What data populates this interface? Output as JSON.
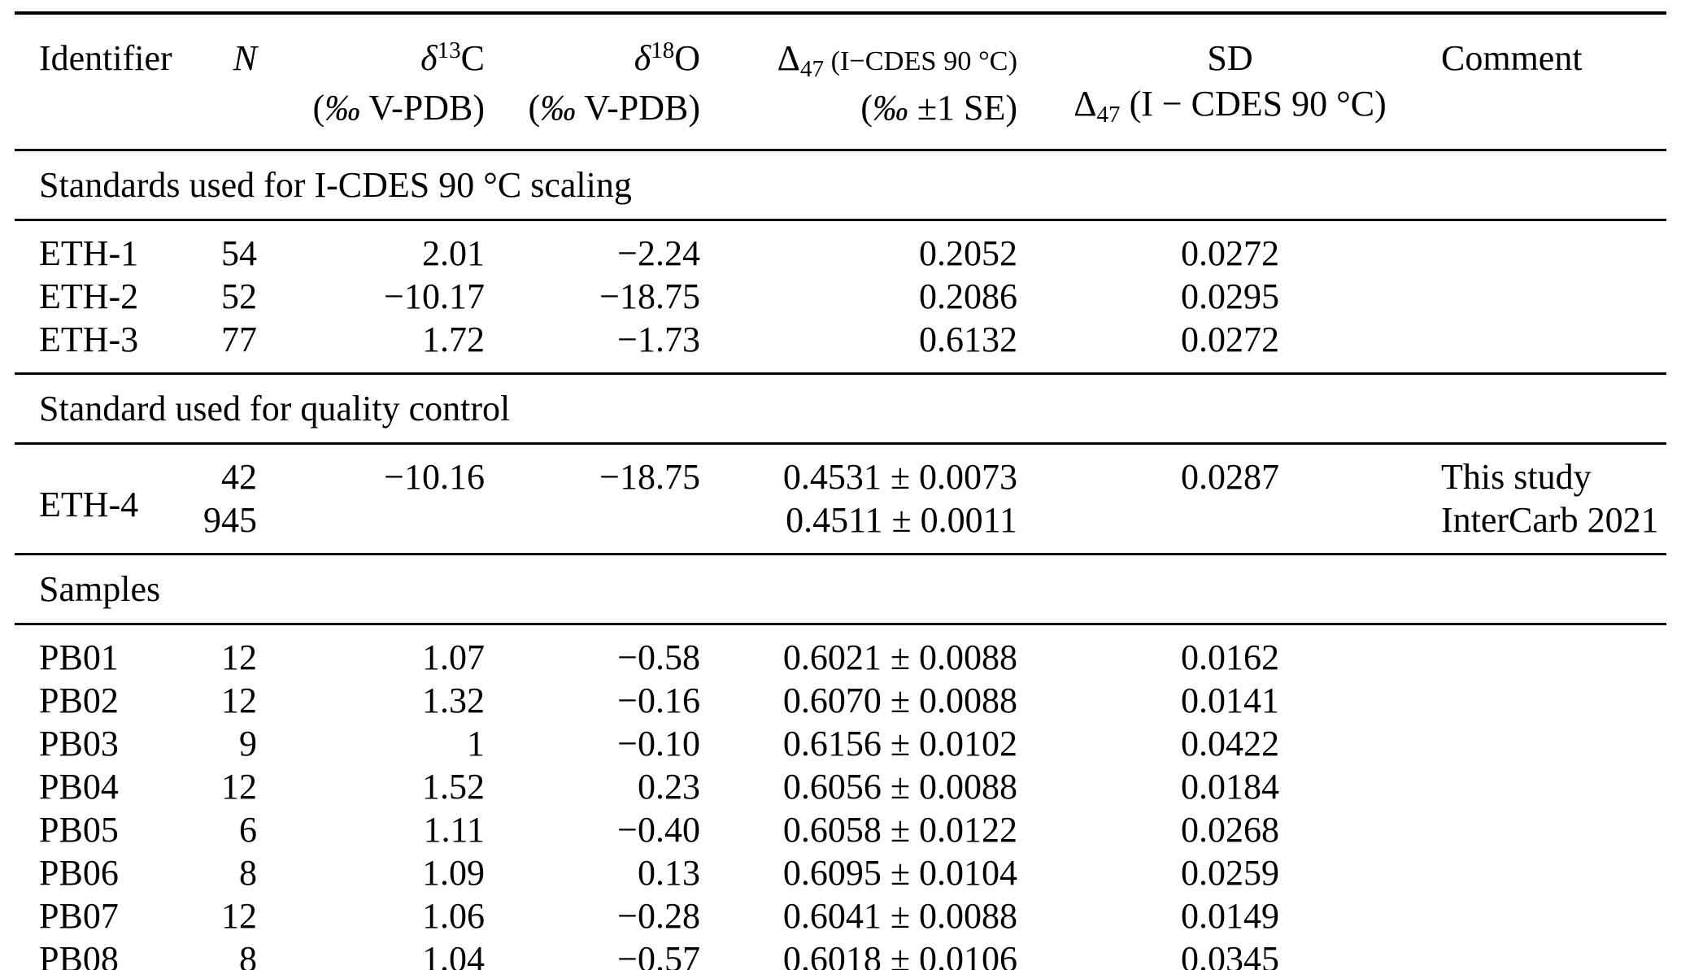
{
  "table": {
    "columns": [
      {
        "key": "identifier",
        "align": "al",
        "line1": [
          {
            "t": "text",
            "v": "Identifier"
          }
        ],
        "line2": []
      },
      {
        "key": "n",
        "align": "ar",
        "line1": [
          {
            "t": "i",
            "v": "N"
          }
        ],
        "line2": []
      },
      {
        "key": "d13c",
        "align": "ar",
        "line1": [
          {
            "t": "i",
            "v": "δ"
          },
          {
            "t": "sup",
            "v": "13"
          },
          {
            "t": "text",
            "v": "C"
          }
        ],
        "line2": [
          {
            "t": "text",
            "v": "("
          },
          {
            "t": "i",
            "v": "‰"
          },
          {
            "t": "text",
            "v": " V-PDB)"
          }
        ]
      },
      {
        "key": "d18o",
        "align": "ar",
        "line1": [
          {
            "t": "i",
            "v": "δ"
          },
          {
            "t": "sup",
            "v": "18"
          },
          {
            "t": "text",
            "v": "O"
          }
        ],
        "line2": [
          {
            "t": "text",
            "v": "("
          },
          {
            "t": "i",
            "v": "‰"
          },
          {
            "t": "text",
            "v": " V-PDB)"
          }
        ]
      },
      {
        "key": "d47",
        "align": "ar",
        "line1": [
          {
            "t": "text",
            "v": "Δ"
          },
          {
            "t": "sub",
            "v": "47"
          },
          {
            "t": "small",
            "v": " (I−CDES 90 °C)"
          }
        ],
        "line2": [
          {
            "t": "text",
            "v": "("
          },
          {
            "t": "i",
            "v": "‰"
          },
          {
            "t": "text",
            "v": " ±1 SE)"
          }
        ]
      },
      {
        "key": "sd",
        "align": "ac",
        "line1": [
          {
            "t": "text",
            "v": "SD"
          }
        ],
        "line2": [
          {
            "t": "text",
            "v": "Δ"
          },
          {
            "t": "sub",
            "v": "47"
          },
          {
            "t": "text",
            "v": " (I − CDES 90 °C)"
          }
        ]
      },
      {
        "key": "comment",
        "align": "al",
        "line1": [
          {
            "t": "text",
            "v": "Comment"
          }
        ],
        "line2": []
      }
    ],
    "sections": [
      {
        "title": "Standards used for I-CDES 90 °C scaling",
        "rows": [
          {
            "cells": {
              "identifier": "ETH-1",
              "n": "54",
              "d13c": "2.01",
              "d18o": "−2.24",
              "d47": "0.2052",
              "sd": "0.0272",
              "comment": ""
            }
          },
          {
            "cells": {
              "identifier": "ETH-2",
              "n": "52",
              "d13c": "−10.17",
              "d18o": "−18.75",
              "d47": "0.2086",
              "sd": "0.0295",
              "comment": ""
            }
          },
          {
            "cells": {
              "identifier": "ETH-3",
              "n": "77",
              "d13c": "1.72",
              "d18o": "−1.73",
              "d47": "0.6132",
              "sd": "0.0272",
              "comment": ""
            }
          }
        ]
      },
      {
        "title": "Standard used for quality control",
        "rows": [
          {
            "identifier_rowspan": 2,
            "cells": {
              "identifier": "ETH-4",
              "n": "42",
              "d13c": "−10.16",
              "d18o": "−18.75",
              "d47": "0.4531 ± 0.0073",
              "sd": "0.0287",
              "comment": "This study"
            }
          },
          {
            "cells": {
              "identifier": null,
              "n": "945",
              "d13c": "",
              "d18o": "",
              "d47": "0.4511 ± 0.0011",
              "sd": "",
              "comment": "InterCarb 2021"
            }
          }
        ]
      },
      {
        "title": "Samples",
        "rows": [
          {
            "cells": {
              "identifier": "PB01",
              "n": "12",
              "d13c": "1.07",
              "d18o": "−0.58",
              "d47": "0.6021 ± 0.0088",
              "sd": "0.0162",
              "comment": ""
            }
          },
          {
            "cells": {
              "identifier": "PB02",
              "n": "12",
              "d13c": "1.32",
              "d18o": "−0.16",
              "d47": "0.6070 ± 0.0088",
              "sd": "0.0141",
              "comment": ""
            }
          },
          {
            "cells": {
              "identifier": "PB03",
              "n": "9",
              "d13c": "1",
              "d18o": "−0.10",
              "d47": "0.6156 ± 0.0102",
              "sd": "0.0422",
              "comment": ""
            }
          },
          {
            "cells": {
              "identifier": "PB04",
              "n": "12",
              "d13c": "1.52",
              "d18o": "0.23",
              "d47": "0.6056 ± 0.0088",
              "sd": "0.0184",
              "comment": ""
            }
          },
          {
            "cells": {
              "identifier": "PB05",
              "n": "6",
              "d13c": "1.11",
              "d18o": "−0.40",
              "d47": "0.6058 ± 0.0122",
              "sd": "0.0268",
              "comment": ""
            }
          },
          {
            "cells": {
              "identifier": "PB06",
              "n": "8",
              "d13c": "1.09",
              "d18o": "0.13",
              "d47": "0.6095 ± 0.0104",
              "sd": "0.0259",
              "comment": ""
            }
          },
          {
            "cells": {
              "identifier": "PB07",
              "n": "12",
              "d13c": "1.06",
              "d18o": "−0.28",
              "d47": "0.6041 ± 0.0088",
              "sd": "0.0149",
              "comment": ""
            }
          },
          {
            "cells": {
              "identifier": "PB08",
              "n": "8",
              "d13c": "1.04",
              "d18o": "−0.57",
              "d47": "0.6018 ± 0.0106",
              "sd": "0.0345",
              "comment": ""
            }
          }
        ]
      }
    ]
  }
}
